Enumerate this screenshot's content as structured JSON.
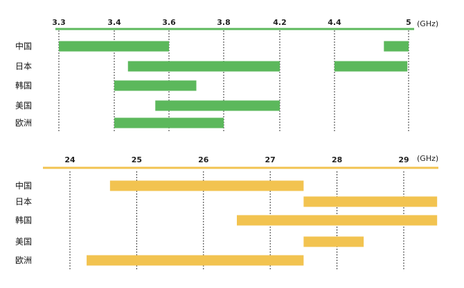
{
  "chart_data": [
    {
      "type": "bar",
      "subtype": "range",
      "axis_unit": "(GHz)",
      "ticks": [
        "3.3",
        "3.4",
        "3.6",
        "3.8",
        "4.2",
        "4.4",
        "5"
      ],
      "categories": [
        "中国",
        "日本",
        "韩国",
        "美国",
        "欧洲"
      ],
      "ranges": [
        [
          [
            "3.3",
            "3.6"
          ],
          [
            "4.8",
            "5"
          ]
        ],
        [
          [
            "3.45",
            "4.2"
          ],
          [
            "4.4",
            "4.99"
          ]
        ],
        [
          [
            "3.4",
            "3.7"
          ]
        ],
        [
          [
            "3.55",
            "4.2"
          ]
        ],
        [
          [
            "3.4",
            "3.8"
          ]
        ]
      ],
      "color": "#5cb85c",
      "axis_color": "#5cb85c",
      "grid": "dotted vertical lines at ticks"
    },
    {
      "type": "bar",
      "subtype": "range",
      "axis_unit": "(GHz)",
      "ticks": [
        "24",
        "25",
        "26",
        "27",
        "28",
        "29"
      ],
      "categories": [
        "中国",
        "日本",
        "韩国",
        "美国",
        "欧洲"
      ],
      "ranges": [
        [
          [
            24.6,
            27.5
          ]
        ],
        [
          [
            27.5,
            29.5
          ]
        ],
        [
          [
            26.5,
            29.5
          ]
        ],
        [
          [
            27.5,
            28.4
          ]
        ],
        [
          [
            24.25,
            27.5
          ]
        ]
      ],
      "xlim": [
        23.3,
        29.5
      ],
      "color": "#f2c350",
      "axis_color": "#f2c350",
      "grid": "dotted vertical lines at ticks"
    }
  ]
}
